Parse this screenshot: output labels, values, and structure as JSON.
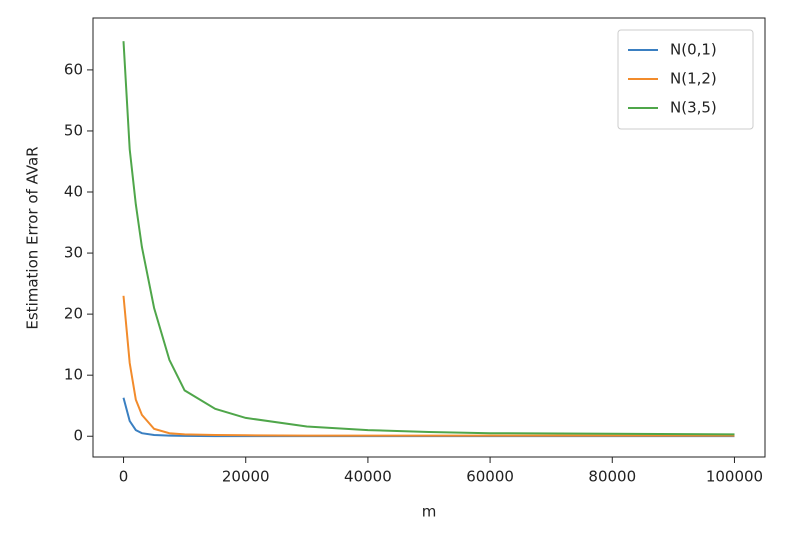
{
  "chart_data": {
    "type": "line",
    "xlabel": "m",
    "ylabel": "Estimation Error of AVaR",
    "x": [
      0,
      1000,
      2000,
      3000,
      5000,
      7500,
      10000,
      15000,
      20000,
      30000,
      40000,
      50000,
      60000,
      80000,
      100000
    ],
    "series": [
      {
        "name": "N(0,1)",
        "color": "#3a7fc1",
        "values": [
          6.3,
          2.5,
          1.0,
          0.5,
          0.2,
          0.1,
          0.05,
          0.03,
          0.02,
          0.02,
          0.02,
          0.02,
          0.02,
          0.02,
          0.02
        ]
      },
      {
        "name": "N(1,2)",
        "color": "#f28b2b",
        "values": [
          23,
          12,
          6,
          3.5,
          1.2,
          0.5,
          0.3,
          0.2,
          0.15,
          0.1,
          0.1,
          0.1,
          0.1,
          0.1,
          0.1
        ]
      },
      {
        "name": "N(3,5)",
        "color": "#4fa64a",
        "values": [
          64.7,
          47,
          38,
          31,
          21,
          12.5,
          7.5,
          4.5,
          3.0,
          1.6,
          1.0,
          0.7,
          0.5,
          0.4,
          0.3
        ]
      }
    ],
    "xlim": [
      -5000,
      105000
    ],
    "ylim": [
      -3.4,
      68.5
    ],
    "xticks": [
      0,
      20000,
      40000,
      60000,
      80000,
      100000
    ],
    "yticks": [
      0,
      10,
      20,
      30,
      40,
      50,
      60
    ],
    "legend": "upper right"
  }
}
